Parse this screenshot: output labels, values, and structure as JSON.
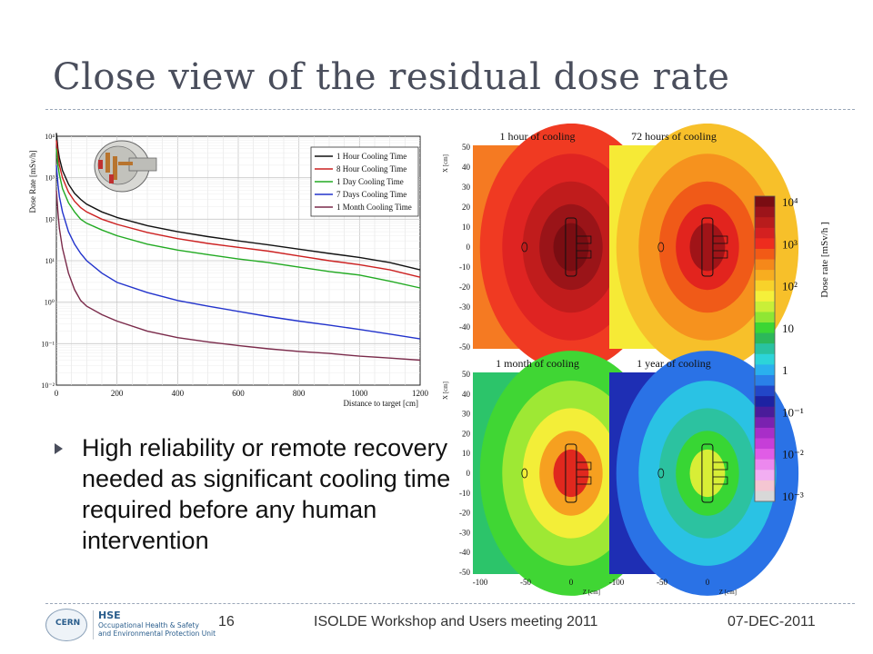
{
  "slide": {
    "title": "Close view of the residual dose rate",
    "bullet": "High reliability or remote recovery needed as significant cooling time required before any human intervention",
    "page_number": "16",
    "footer_center": "ISOLDE Workshop and Users meeting 2011",
    "footer_date": "07-DEC-2011",
    "logo": {
      "badge": "CERN",
      "org": "HSE",
      "sub1": "Occupational Health & Safety",
      "sub2": "and Environmental Protection Unit"
    }
  },
  "colors": {
    "title": "#4a4e5c",
    "rule": "#9aa7b8"
  },
  "chart_data": [
    {
      "type": "line",
      "xlabel": "Distance to target [cm]",
      "ylabel": "Dose Rate [mSv/h]",
      "yscale": "log",
      "xlim": [
        0,
        1200
      ],
      "ylim": [
        0.01,
        10000
      ],
      "xticks": [
        "0",
        "200",
        "400",
        "600",
        "800",
        "1000",
        "1200"
      ],
      "yticks": [
        "10⁻²",
        "10⁻¹",
        "10⁰",
        "10¹",
        "10²",
        "10³",
        "10⁴"
      ],
      "grid": true,
      "legend": "top-right",
      "x": [
        0,
        5,
        10,
        20,
        40,
        60,
        80,
        100,
        150,
        200,
        300,
        400,
        500,
        600,
        700,
        800,
        900,
        1000,
        1100,
        1200
      ],
      "series": [
        {
          "name": "1 Hour Cooling Time",
          "color": "#111111",
          "values": [
            12000,
            5000,
            3000,
            1500,
            700,
            420,
            300,
            230,
            150,
            110,
            70,
            50,
            38,
            30,
            24,
            19,
            15,
            12,
            9,
            6
          ]
        },
        {
          "name": "8 Hour Cooling Time",
          "color": "#cc2020",
          "values": [
            8000,
            3500,
            2000,
            1000,
            450,
            270,
            190,
            150,
            100,
            75,
            48,
            34,
            26,
            21,
            17,
            13,
            10,
            8,
            6,
            4
          ]
        },
        {
          "name": "1 Day Cooling Time",
          "color": "#22aa22",
          "values": [
            5000,
            2000,
            1200,
            550,
            250,
            150,
            100,
            80,
            55,
            40,
            25,
            18,
            14,
            11,
            9,
            7,
            5.5,
            4.5,
            3.2,
            2.2
          ]
        },
        {
          "name": "7 Days Cooling Time",
          "color": "#2233cc",
          "values": [
            2000,
            700,
            350,
            150,
            50,
            25,
            15,
            10,
            5,
            3,
            1.7,
            1.1,
            0.8,
            0.6,
            0.45,
            0.35,
            0.28,
            0.22,
            0.17,
            0.13
          ]
        },
        {
          "name": "1 Month Cooling Time",
          "color": "#7a2a4a",
          "values": [
            500,
            150,
            60,
            20,
            5,
            2,
            1.1,
            0.8,
            0.5,
            0.35,
            0.2,
            0.14,
            0.11,
            0.09,
            0.075,
            0.065,
            0.058,
            0.05,
            0.045,
            0.04
          ]
        }
      ]
    },
    {
      "type": "heatmap",
      "panels": [
        {
          "title": "1 hour of cooling",
          "palette": "red"
        },
        {
          "title": "72 hours of cooling",
          "palette": "orange"
        },
        {
          "title": "1 month of cooling",
          "palette": "green"
        },
        {
          "title": "1 year of cooling",
          "palette": "blue"
        }
      ],
      "xlabel": "Z [cm]",
      "ylabel": "X [cm]",
      "xticks": [
        "-100",
        "-50",
        "0"
      ],
      "yticks": [
        "50",
        "40",
        "30",
        "20",
        "10",
        "0",
        "-10",
        "-20",
        "-30",
        "-40",
        "-50"
      ],
      "colorbar_label": "Dose rate [mSv/h ]",
      "colorbar_ticks": [
        "10⁴",
        "10³",
        "10²",
        "10",
        "1",
        "10⁻¹",
        "10⁻²",
        "10⁻³"
      ],
      "colorbar_colors": [
        "#7a0d12",
        "#9c141a",
        "#b81c1c",
        "#d42020",
        "#ee2c1e",
        "#f25a16",
        "#f5881a",
        "#f7ad20",
        "#f8d22a",
        "#f5f03a",
        "#c9ef38",
        "#8fe634",
        "#3bd634",
        "#2cb85a",
        "#29c2a0",
        "#2cd4d9",
        "#2ab0ee",
        "#2a80e8",
        "#2246c8",
        "#1d22a2",
        "#4a1c9a",
        "#7a22b0",
        "#a82ec8",
        "#c63ed8",
        "#e05ce6",
        "#ec88ee",
        "#f2aef2",
        "#f5c6d2",
        "#d8d8d8"
      ]
    }
  ]
}
